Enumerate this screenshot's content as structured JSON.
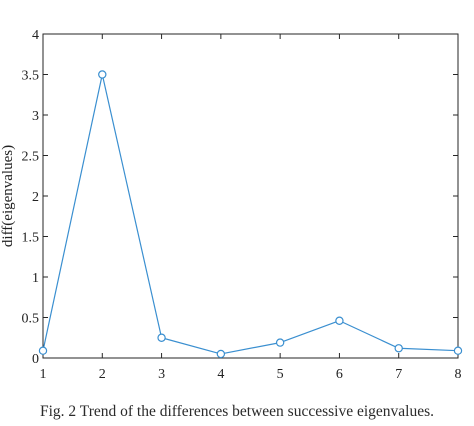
{
  "caption": "Fig. 2 Trend of the differences between successive eigenvalues.",
  "colors": {
    "series": "#3a8fd0",
    "axis": "#262626",
    "text": "#222222"
  },
  "chart_data": {
    "type": "line",
    "title": "",
    "xlabel": "",
    "ylabel": "diff(eigenvalues)",
    "xlim": [
      1,
      8
    ],
    "ylim": [
      0,
      4
    ],
    "xticks": [
      "1",
      "2",
      "3",
      "4",
      "5",
      "6",
      "7",
      "8"
    ],
    "yticks": [
      "0",
      "0.5",
      "1",
      "1.5",
      "2",
      "2.5",
      "3",
      "3.5",
      "4"
    ],
    "grid": false,
    "marker": "circle",
    "series": [
      {
        "x": [
          1,
          2,
          3,
          4,
          5,
          6,
          7,
          8
        ],
        "y": [
          0.09,
          3.5,
          0.25,
          0.05,
          0.19,
          0.46,
          0.12,
          0.09
        ]
      }
    ]
  }
}
